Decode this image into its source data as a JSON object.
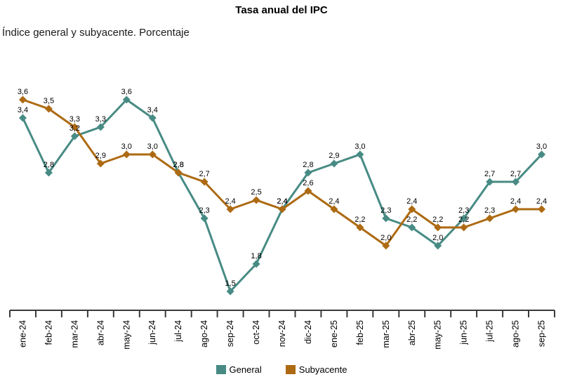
{
  "header": {
    "title": "Tasa anual del IPC",
    "subtitle": "Índice general y subyacente. Porcentaje"
  },
  "chart_data": {
    "type": "line",
    "title": "Tasa anual del IPC",
    "subtitle": "Índice general y subyacente. Porcentaje",
    "categories": [
      "ene-24",
      "feb-24",
      "mar-24",
      "abr-24",
      "may-24",
      "jun-24",
      "jul-24",
      "ago-24",
      "sep-24",
      "oct-24",
      "nov-24",
      "dic-24",
      "ene-25",
      "feb-25",
      "mar-25",
      "abr-25",
      "may-25",
      "jun-25",
      "jul-25",
      "ago-25",
      "sep-25"
    ],
    "series": [
      {
        "name": "General",
        "color": "#478b84",
        "values": [
          3.4,
          2.8,
          3.2,
          3.3,
          3.6,
          3.4,
          2.8,
          2.3,
          1.5,
          1.8,
          2.4,
          2.8,
          2.9,
          3.0,
          2.3,
          2.2,
          2.0,
          2.3,
          2.7,
          2.7,
          3.0
        ]
      },
      {
        "name": "Subyacente",
        "color": "#ad6a12",
        "values": [
          3.6,
          3.5,
          3.3,
          2.9,
          3.0,
          3.0,
          2.8,
          2.7,
          2.4,
          2.5,
          2.4,
          2.6,
          2.4,
          2.2,
          2.0,
          2.4,
          2.2,
          2.2,
          2.3,
          2.4,
          2.4
        ]
      }
    ],
    "xlabel": "",
    "ylabel": "",
    "ylim": [
      1.2,
      3.8
    ],
    "grid": false,
    "data_labels": true,
    "decimal_separator": ",",
    "marker": "diamond",
    "legend_position": "bottom",
    "axis_color": "#3a3a3a",
    "label_color": "#000000"
  }
}
